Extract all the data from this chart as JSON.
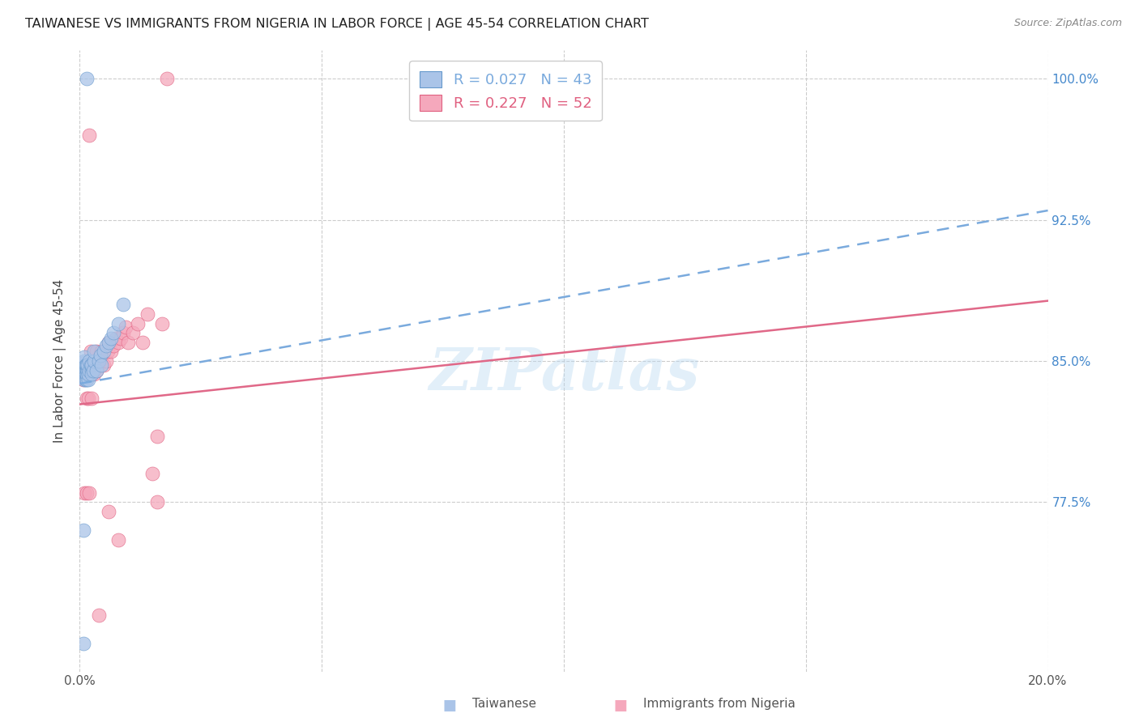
{
  "title": "TAIWANESE VS IMMIGRANTS FROM NIGERIA IN LABOR FORCE | AGE 45-54 CORRELATION CHART",
  "source": "Source: ZipAtlas.com",
  "ylabel": "In Labor Force | Age 45-54",
  "xmin": 0.0,
  "xmax": 0.2,
  "ymin": 0.685,
  "ymax": 1.015,
  "watermark_text": "ZIPatlas",
  "blue_color": "#aac4e8",
  "blue_edge_color": "#6699cc",
  "pink_color": "#f5a8bc",
  "pink_edge_color": "#e06080",
  "blue_line_color": "#7aaadd",
  "pink_line_color": "#e06888",
  "right_tick_color": "#4488cc",
  "legend_label_blue": "R = 0.027   N = 43",
  "legend_label_pink": "R = 0.227   N = 52",
  "tw_line_x0": 0.0,
  "tw_line_y0": 0.838,
  "tw_line_x1": 0.2,
  "tw_line_y1": 0.93,
  "ng_line_x0": 0.0,
  "ng_line_y0": 0.827,
  "ng_line_x1": 0.2,
  "ng_line_y1": 0.882,
  "taiwanese_x": [
    0.0008,
    0.0008,
    0.001,
    0.001,
    0.001,
    0.001,
    0.001,
    0.001,
    0.001,
    0.001,
    0.0012,
    0.0012,
    0.0012,
    0.0014,
    0.0014,
    0.0014,
    0.0015,
    0.0015,
    0.0016,
    0.0016,
    0.0018,
    0.0018,
    0.002,
    0.002,
    0.0022,
    0.0024,
    0.0025,
    0.0025,
    0.0028,
    0.003,
    0.003,
    0.0035,
    0.004,
    0.0042,
    0.0045,
    0.005,
    0.0055,
    0.006,
    0.0065,
    0.007,
    0.008,
    0.009,
    0.0015
  ],
  "taiwanese_y": [
    0.7,
    0.76,
    0.84,
    0.843,
    0.845,
    0.847,
    0.848,
    0.849,
    0.85,
    0.852,
    0.84,
    0.845,
    0.848,
    0.842,
    0.845,
    0.848,
    0.84,
    0.843,
    0.845,
    0.848,
    0.84,
    0.843,
    0.845,
    0.85,
    0.848,
    0.845,
    0.843,
    0.848,
    0.845,
    0.85,
    0.855,
    0.845,
    0.85,
    0.853,
    0.848,
    0.855,
    0.858,
    0.86,
    0.862,
    0.865,
    0.87,
    0.88,
    1.0
  ],
  "nigeria_x": [
    0.0008,
    0.001,
    0.001,
    0.0012,
    0.0012,
    0.0014,
    0.0014,
    0.0015,
    0.0015,
    0.0016,
    0.0018,
    0.0018,
    0.002,
    0.002,
    0.0022,
    0.0022,
    0.0024,
    0.0025,
    0.0025,
    0.0028,
    0.003,
    0.003,
    0.0035,
    0.0035,
    0.004,
    0.0042,
    0.0045,
    0.005,
    0.0055,
    0.0058,
    0.006,
    0.0065,
    0.007,
    0.0075,
    0.008,
    0.0085,
    0.009,
    0.0095,
    0.01,
    0.011,
    0.012,
    0.013,
    0.014,
    0.015,
    0.016,
    0.017,
    0.002,
    0.004,
    0.006,
    0.008,
    0.016,
    0.018
  ],
  "nigeria_y": [
    0.84,
    0.843,
    0.78,
    0.845,
    0.848,
    0.83,
    0.843,
    0.845,
    0.78,
    0.848,
    0.83,
    0.843,
    0.845,
    0.78,
    0.848,
    0.855,
    0.843,
    0.848,
    0.83,
    0.848,
    0.85,
    0.843,
    0.845,
    0.855,
    0.848,
    0.85,
    0.855,
    0.848,
    0.85,
    0.855,
    0.86,
    0.855,
    0.858,
    0.862,
    0.86,
    0.862,
    0.865,
    0.868,
    0.86,
    0.865,
    0.87,
    0.86,
    0.875,
    0.79,
    0.81,
    0.87,
    0.97,
    0.715,
    0.77,
    0.755,
    0.775,
    1.0
  ],
  "ytick_positions": [
    0.775,
    0.85,
    0.925,
    1.0
  ],
  "ytick_labels": [
    "77.5%",
    "85.0%",
    "92.5%",
    "100.0%"
  ],
  "xtick_positions": [
    0.0,
    0.05,
    0.1,
    0.15,
    0.2
  ],
  "xtick_labels": [
    "0.0%",
    "",
    "",
    "",
    "20.0%"
  ]
}
